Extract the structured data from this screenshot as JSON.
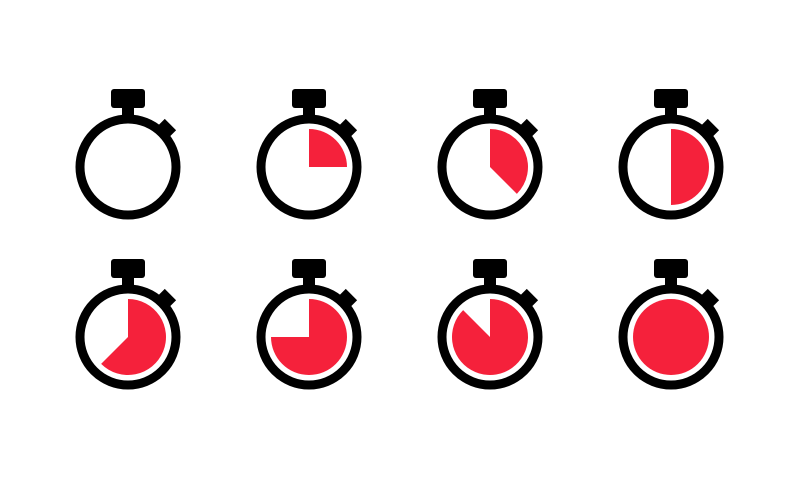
{
  "colors": {
    "background": "#ffffff",
    "outline": "#000000",
    "fill": "#f5213b"
  },
  "stopwatches": [
    {
      "icon": "stopwatch-icon",
      "fill_fraction": 0.0
    },
    {
      "icon": "stopwatch-icon",
      "fill_fraction": 0.25
    },
    {
      "icon": "stopwatch-icon",
      "fill_fraction": 0.375
    },
    {
      "icon": "stopwatch-icon",
      "fill_fraction": 0.5
    },
    {
      "icon": "stopwatch-icon",
      "fill_fraction": 0.625
    },
    {
      "icon": "stopwatch-icon",
      "fill_fraction": 0.75
    },
    {
      "icon": "stopwatch-icon",
      "fill_fraction": 0.875
    },
    {
      "icon": "stopwatch-icon",
      "fill_fraction": 1.0
    }
  ]
}
